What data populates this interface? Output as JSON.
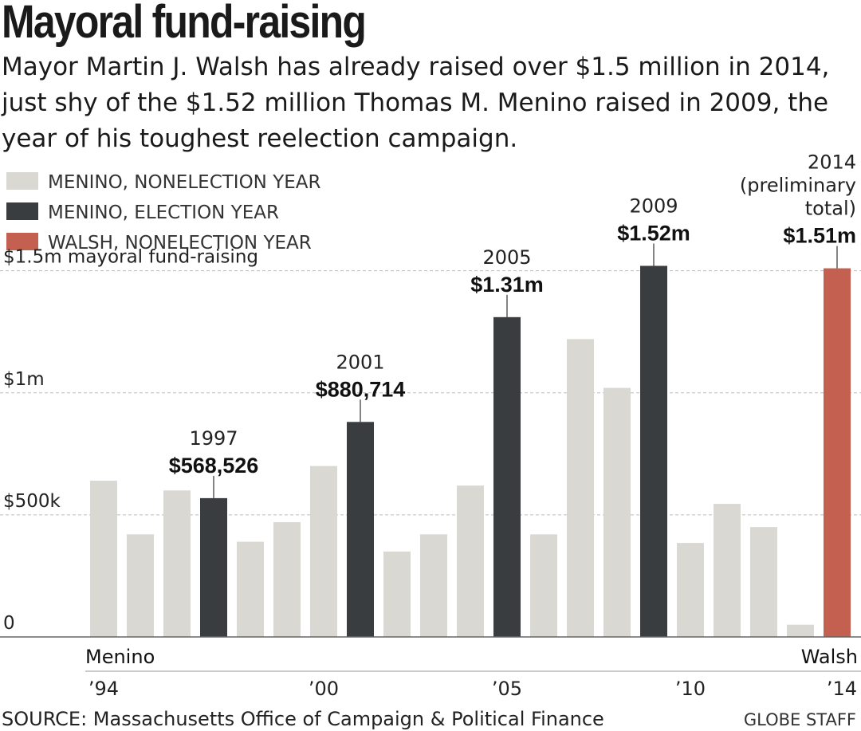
{
  "header": {
    "title": "Mayoral fund-raising",
    "subtitle": "Mayor Martin J. Walsh has already raised over $1.5 million in 2014, just shy of the $1.52 million Thomas M. Menino raised in 2009, the year of his toughest reelection campaign."
  },
  "footer": {
    "source": "SOURCE: Massachusetts Office of Campaign & Political Finance",
    "credit": "GLOBE STAFF"
  },
  "colors": {
    "nonelection": "#d9d8d3",
    "election": "#3a3d40",
    "walsh": "#c4604f",
    "grid": "#bdbdbd",
    "axis": "#666666"
  },
  "chart_data": {
    "type": "bar",
    "title": "Mayoral fund-raising",
    "ylim": [
      0,
      1600000
    ],
    "grid": true,
    "legend_position": "top-left",
    "legend": [
      {
        "key": "nonelection",
        "label": "MENINO, NONELECTION YEAR"
      },
      {
        "key": "election",
        "label": "MENINO, ELECTION YEAR"
      },
      {
        "key": "walsh",
        "label": "WALSH, NONELECTION YEAR"
      }
    ],
    "y_ticks": [
      {
        "value": 0,
        "label": "0"
      },
      {
        "value": 500000,
        "label": "$500k"
      },
      {
        "value": 1000000,
        "label": "$1m"
      },
      {
        "value": 1500000,
        "label": "$1.5m mayoral fund-raising"
      }
    ],
    "x": [
      1994,
      1995,
      1996,
      1997,
      1998,
      1999,
      2000,
      2001,
      2002,
      2003,
      2004,
      2005,
      2006,
      2007,
      2008,
      2009,
      2010,
      2011,
      2012,
      2013,
      2014
    ],
    "values": [
      640000,
      420000,
      600000,
      568526,
      390000,
      470000,
      700000,
      880714,
      350000,
      420000,
      620000,
      1310000,
      420000,
      1220000,
      1020000,
      1520000,
      385000,
      545000,
      450000,
      50000,
      1510000
    ],
    "categories_by_bar": [
      "nonelection",
      "nonelection",
      "nonelection",
      "election",
      "nonelection",
      "nonelection",
      "nonelection",
      "election",
      "nonelection",
      "nonelection",
      "nonelection",
      "election",
      "nonelection",
      "nonelection",
      "nonelection",
      "election",
      "nonelection",
      "nonelection",
      "nonelection",
      "nonelection",
      "walsh"
    ],
    "x_tick_labels": [
      {
        "year": 1994,
        "label": "’94"
      },
      {
        "year": 2000,
        "label": "’00"
      },
      {
        "year": 2005,
        "label": "’05"
      },
      {
        "year": 2010,
        "label": "’10"
      },
      {
        "year": 2014,
        "label": "’14"
      }
    ],
    "periods": [
      {
        "label": "Menino",
        "from": 1994,
        "to": 2013
      },
      {
        "label": "Walsh",
        "from": 2014,
        "to": 2014
      }
    ],
    "annotations": [
      {
        "year": 1997,
        "lines": [
          "1997"
        ],
        "value_label": "$568,526"
      },
      {
        "year": 2001,
        "lines": [
          "2001"
        ],
        "value_label": "$880,714"
      },
      {
        "year": 2005,
        "lines": [
          "2005"
        ],
        "value_label": "$1.31m"
      },
      {
        "year": 2009,
        "lines": [
          "2009"
        ],
        "value_label": "$1.52m"
      },
      {
        "year": 2014,
        "lines": [
          "2014",
          "(preliminary",
          "total)"
        ],
        "value_label": "$1.51m"
      }
    ]
  }
}
